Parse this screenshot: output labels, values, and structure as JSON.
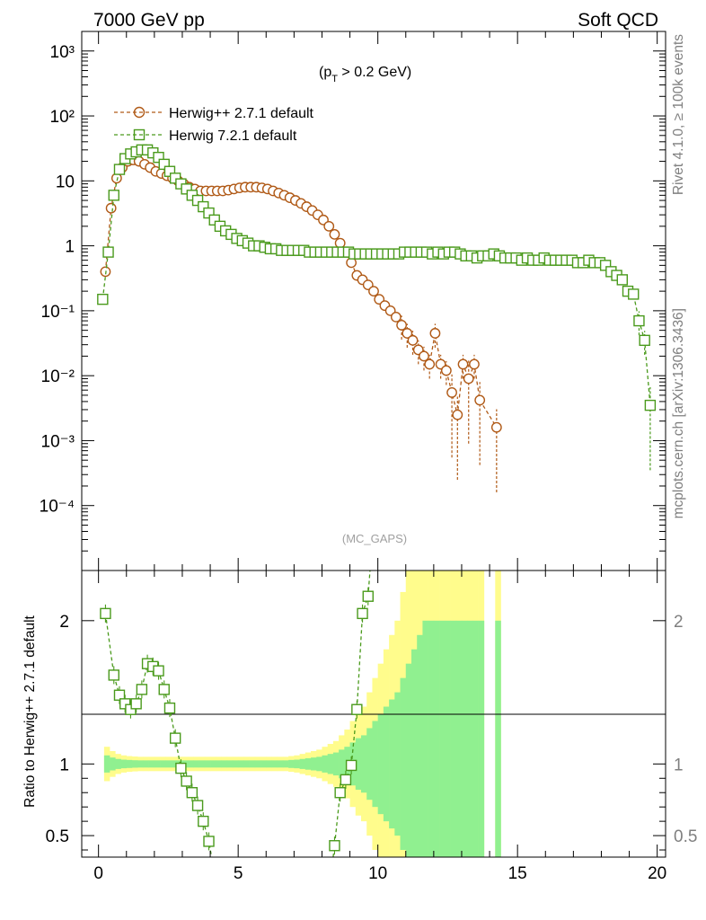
{
  "header": {
    "left": "7000 GeV pp",
    "right": "Soft QCD"
  },
  "side_labels": {
    "rivet": "Rivet 4.1.0, ≥ 100k events",
    "mcplots": "mcplots.cern.ch [arXiv:1306.3436]"
  },
  "analysis_tag": "(MC_GAPS)",
  "cut_label_main": "(p",
  "cut_label_sub": "T",
  "cut_label_rest": " > 0.2 GeV)",
  "colors": {
    "herwigpp": "#b05a17",
    "herwig7": "#4a9a1c",
    "band_inner": "#90f090",
    "band_outer": "#fffc8c"
  },
  "chart_data": [
    {
      "type": "line",
      "yscale": "log",
      "xlim": [
        -0.6,
        20.3
      ],
      "ylim": [
        1e-05,
        2000
      ],
      "y_tick_labels": [
        "10⁻⁴",
        "10⁻³",
        "10⁻²",
        "10⁻¹",
        "1",
        "10",
        "10²",
        "10³"
      ],
      "legend_position": "top-left",
      "series": [
        {
          "name": "Herwig++ 2.7.1 default",
          "marker": "circle",
          "color": "#b05a17",
          "x": [
            0.25,
            0.45,
            0.65,
            0.85,
            1.05,
            1.25,
            1.45,
            1.65,
            1.85,
            2.05,
            2.25,
            2.45,
            2.65,
            2.85,
            3.05,
            3.25,
            3.45,
            3.65,
            3.85,
            4.05,
            4.25,
            4.45,
            4.65,
            4.85,
            5.05,
            5.25,
            5.45,
            5.65,
            5.85,
            6.05,
            6.25,
            6.45,
            6.65,
            6.85,
            7.05,
            7.25,
            7.45,
            7.65,
            7.85,
            8.05,
            8.25,
            8.45,
            8.65,
            8.85,
            9.05,
            9.25,
            9.45,
            9.65,
            9.85,
            10.05,
            10.25,
            10.45,
            10.65,
            10.85,
            11.05,
            11.25,
            11.45,
            11.65,
            11.85,
            12.05,
            12.25,
            12.45,
            12.65,
            12.85,
            13.05,
            13.25,
            13.45,
            13.65,
            14.25
          ],
          "y": [
            0.4,
            3.8,
            11,
            16,
            20,
            21,
            20,
            18,
            16,
            14,
            13,
            12,
            11,
            10,
            9,
            8,
            7.5,
            7,
            7,
            7,
            7,
            7,
            7.2,
            7.5,
            7.8,
            8,
            8,
            8,
            7.8,
            7.5,
            7,
            6.5,
            6,
            5.5,
            5,
            4.5,
            4,
            3.5,
            3,
            2.5,
            2,
            1.5,
            1.1,
            0.8,
            0.55,
            0.35,
            0.3,
            0.25,
            0.2,
            0.15,
            0.12,
            0.1,
            0.08,
            0.06,
            0.045,
            0.035,
            0.025,
            0.02,
            0.015,
            0.045,
            0.015,
            0.012,
            0.0055,
            0.0025,
            0.015,
            0.009,
            0.015,
            0.0042,
            0.0016
          ]
        },
        {
          "name": "Herwig 7.2.1 default",
          "marker": "square",
          "color": "#4a9a1c",
          "x": [
            0.15,
            0.35,
            0.55,
            0.75,
            0.95,
            1.15,
            1.35,
            1.55,
            1.75,
            1.95,
            2.15,
            2.35,
            2.55,
            2.75,
            2.95,
            3.15,
            3.35,
            3.55,
            3.75,
            3.95,
            4.15,
            4.35,
            4.55,
            4.75,
            4.95,
            5.15,
            5.35,
            5.55,
            5.75,
            5.95,
            6.15,
            6.35,
            6.55,
            6.75,
            6.95,
            7.15,
            7.35,
            7.55,
            7.75,
            7.95,
            8.15,
            8.35,
            8.55,
            8.75,
            8.95,
            9.15,
            9.35,
            9.55,
            9.75,
            9.95,
            10.15,
            10.35,
            10.55,
            10.75,
            10.95,
            11.15,
            11.35,
            11.55,
            11.75,
            11.95,
            12.15,
            12.35,
            12.55,
            12.75,
            12.95,
            13.15,
            13.35,
            13.55,
            13.75,
            13.95,
            14.15,
            14.35,
            14.55,
            14.75,
            14.95,
            15.15,
            15.35,
            15.55,
            15.75,
            15.95,
            16.15,
            16.35,
            16.55,
            16.75,
            16.95,
            17.15,
            17.35,
            17.55,
            17.75,
            17.95,
            18.15,
            18.35,
            18.55,
            18.75,
            18.95,
            19.15,
            19.35,
            19.55,
            19.75
          ],
          "y": [
            0.15,
            0.8,
            6,
            15,
            22,
            26,
            28,
            30,
            30,
            27,
            23,
            18,
            14,
            11,
            9,
            7.5,
            6,
            5,
            4,
            3.2,
            2.5,
            2,
            1.7,
            1.5,
            1.3,
            1.2,
            1.1,
            1,
            1,
            0.95,
            0.9,
            0.9,
            0.85,
            0.85,
            0.85,
            0.85,
            0.85,
            0.8,
            0.8,
            0.8,
            0.8,
            0.8,
            0.8,
            0.8,
            0.8,
            0.75,
            0.75,
            0.75,
            0.75,
            0.75,
            0.75,
            0.75,
            0.75,
            0.75,
            0.8,
            0.8,
            0.8,
            0.8,
            0.8,
            0.75,
            0.8,
            0.75,
            0.8,
            0.8,
            0.75,
            0.7,
            0.7,
            0.65,
            0.7,
            0.7,
            0.75,
            0.7,
            0.65,
            0.65,
            0.65,
            0.6,
            0.65,
            0.6,
            0.6,
            0.65,
            0.6,
            0.6,
            0.6,
            0.6,
            0.6,
            0.55,
            0.55,
            0.6,
            0.55,
            0.55,
            0.5,
            0.4,
            0.35,
            0.3,
            0.2,
            0.18,
            0.07,
            0.035,
            0.0035
          ]
        }
      ]
    },
    {
      "type": "line",
      "ylabel": "Ratio to Herwig++ 2.7.1 default",
      "xlim": [
        -0.6,
        20.3
      ],
      "ylim": [
        0.35,
        2.35
      ],
      "x_tick_labels": [
        "0",
        "5",
        "10",
        "15",
        "20"
      ],
      "y_tick_labels": [
        "0.5",
        "1",
        "2"
      ],
      "reference_line": 1,
      "series": [
        {
          "name": "Herwig 7.2.1 default",
          "marker": "square",
          "color": "#4a9a1c",
          "x": [
            0.25,
            0.55,
            0.75,
            0.95,
            1.15,
            1.35,
            1.55,
            1.75,
            1.95,
            2.15,
            2.35,
            2.55,
            2.75,
            2.95,
            3.15,
            3.35,
            3.55,
            3.75,
            3.95,
            8.45,
            8.65,
            8.85,
            9.05,
            9.25,
            9.45,
            9.65
          ],
          "y": [
            2.05,
            1.62,
            1.48,
            1.42,
            1.38,
            1.42,
            1.52,
            1.7,
            1.68,
            1.65,
            1.52,
            1.39,
            1.18,
            0.97,
            0.88,
            0.8,
            0.71,
            0.6,
            0.46,
            0.43,
            0.8,
            0.89,
            0.99,
            1.38,
            2.05,
            2.17
          ]
        }
      ],
      "band": {
        "bin_width": 0.2,
        "x_start": 0.2,
        "inner_half": [
          0.06,
          0.045,
          0.035,
          0.03,
          0.028,
          0.026,
          0.025,
          0.025,
          0.025,
          0.025,
          0.025,
          0.025,
          0.025,
          0.025,
          0.025,
          0.025,
          0.025,
          0.025,
          0.025,
          0.025,
          0.025,
          0.025,
          0.025,
          0.025,
          0.025,
          0.025,
          0.025,
          0.025,
          0.025,
          0.025,
          0.025,
          0.025,
          0.025,
          0.028,
          0.03,
          0.035,
          0.04,
          0.045,
          0.05,
          0.06,
          0.07,
          0.08,
          0.1,
          0.12,
          0.15,
          0.18,
          0.2,
          0.25,
          0.3,
          0.35,
          0.4,
          0.45,
          0.5,
          0.6,
          0.7,
          0.8,
          0.9,
          1.0,
          1.0,
          1.0,
          1.0,
          1.0,
          1.0,
          1.0,
          1.0,
          1.0,
          1.0,
          1.0,
          1.0,
          1.0,
          1.0
        ],
        "outer_half": [
          0.12,
          0.09,
          0.07,
          0.06,
          0.055,
          0.052,
          0.05,
          0.05,
          0.05,
          0.05,
          0.05,
          0.05,
          0.05,
          0.05,
          0.05,
          0.05,
          0.05,
          0.05,
          0.05,
          0.05,
          0.05,
          0.05,
          0.05,
          0.05,
          0.05,
          0.05,
          0.05,
          0.05,
          0.05,
          0.05,
          0.05,
          0.05,
          0.05,
          0.055,
          0.06,
          0.07,
          0.08,
          0.09,
          0.1,
          0.12,
          0.14,
          0.16,
          0.2,
          0.24,
          0.3,
          0.36,
          0.4,
          0.5,
          0.6,
          0.7,
          0.8,
          0.9,
          1.0,
          1.2,
          1.4,
          1.6,
          1.8,
          2.0,
          2.0,
          2.0,
          2.0,
          2.0,
          2.0,
          2.0,
          2.0,
          2.0,
          2.0,
          2.0,
          2.0,
          2.0,
          2.0
        ],
        "gap_start": 13.8,
        "gap_end": 14.2,
        "end": 14.4
      }
    }
  ]
}
